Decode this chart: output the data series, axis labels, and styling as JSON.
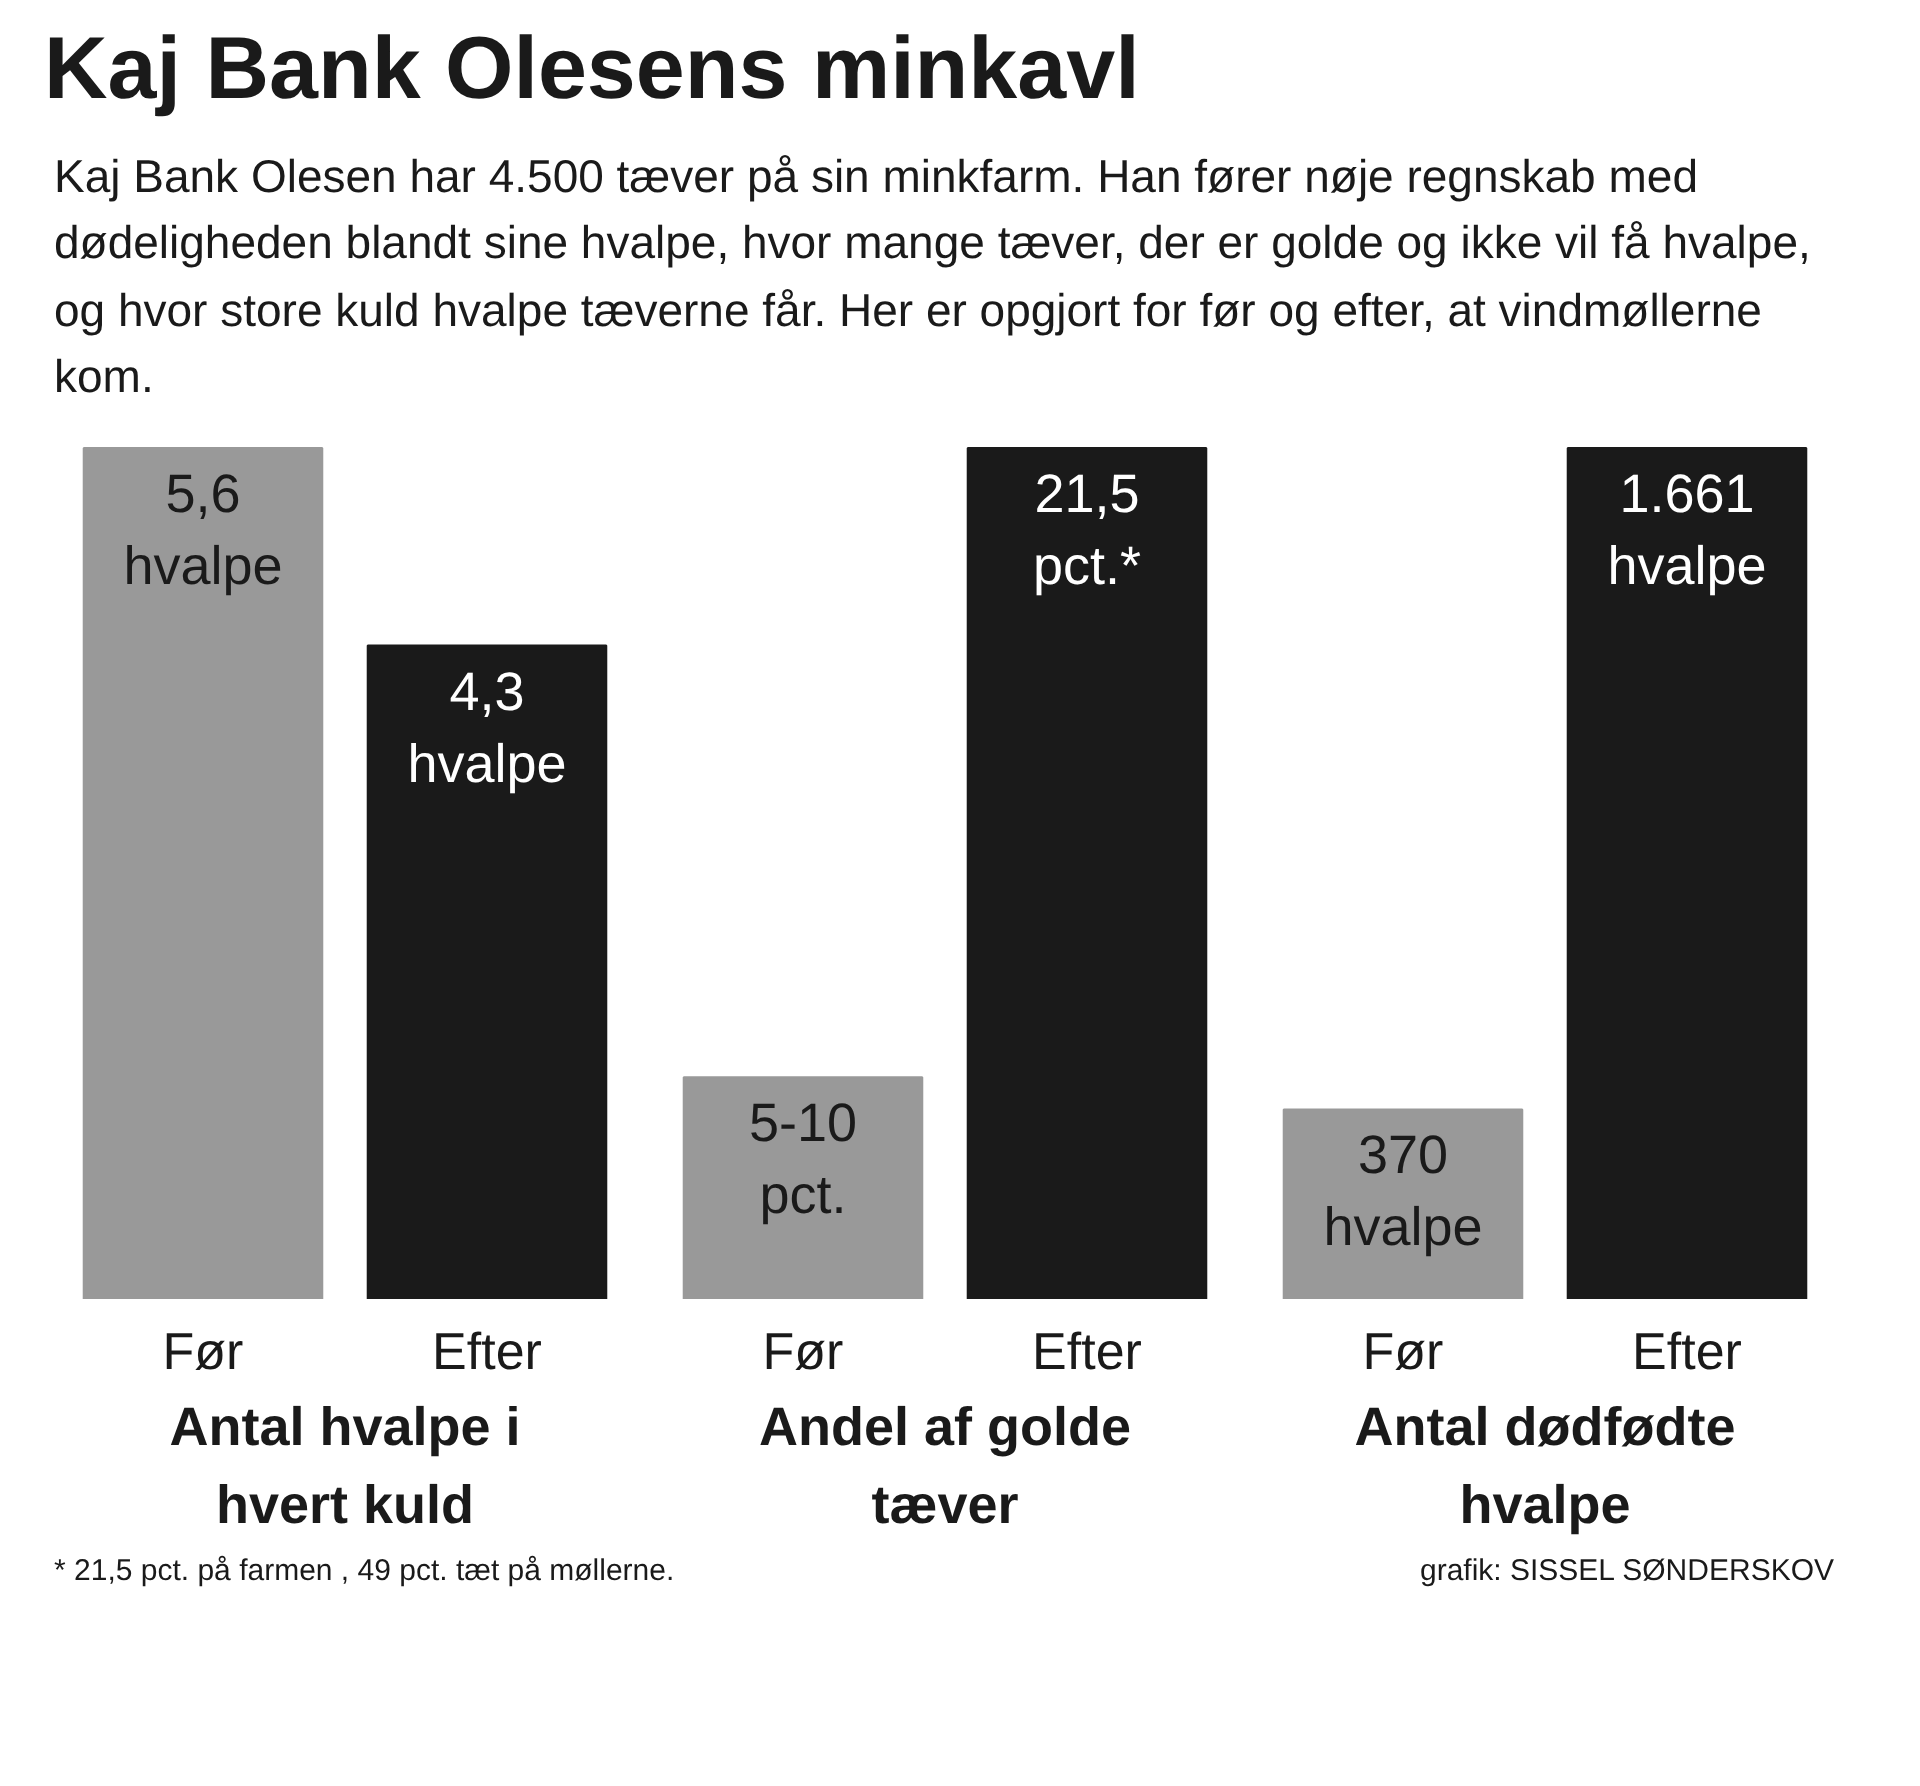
{
  "chart_data": [
    {
      "type": "bar",
      "title": "Kaj Bank Olesens minkavl",
      "subtitle": "Kaj Bank Olesen har 4.500 tæver på sin minkfarm. Han fører nøje regnskab med dødeligheden blandt sine hvalpe, hvor mange tæver, der er golde og ikke vil få hvalpe, og hvor store kuld hvalpe tæverne får. Her er opgjort for før og efter, at vindmøllerne kom.",
      "categories": [
        "Før",
        "Efter"
      ],
      "values": [
        5.6,
        4.3
      ],
      "value_labels": [
        "5,6 hvalpe",
        "4,3 hvalpe"
      ],
      "colors": [
        "#999999",
        "#1a1a1a"
      ],
      "xlabel": "Antal hvalpe i hvert kuld",
      "annotations": [
        "* 21,5 pct. på farmen , 49 pct. tæt på møllerne."
      ],
      "tick_labels": "x"
    },
    {
      "type": "bar",
      "categories": [
        "Før",
        "Efter"
      ],
      "values": [
        5.6,
        21.5
      ],
      "value_labels": [
        "5-10 pct.",
        "21,5 pct.*"
      ],
      "colors": [
        "#999999",
        "#1a1a1a"
      ],
      "xlabel": "Andel af golde tæver",
      "tick_labels": "x"
    },
    {
      "type": "bar",
      "categories": [
        "Før",
        "Efter"
      ],
      "values": [
        370,
        1661
      ],
      "value_labels": [
        "370 hvalpe",
        "1.661 hvalpe"
      ],
      "colors": [
        "#999999",
        "#1a1a1a"
      ],
      "xlabel": "Antal dødfødte hvalpe",
      "annotations": [
        "grafik: SISSEL SØNDERSKOV"
      ],
      "tick_labels": "x"
    }
  ]
}
